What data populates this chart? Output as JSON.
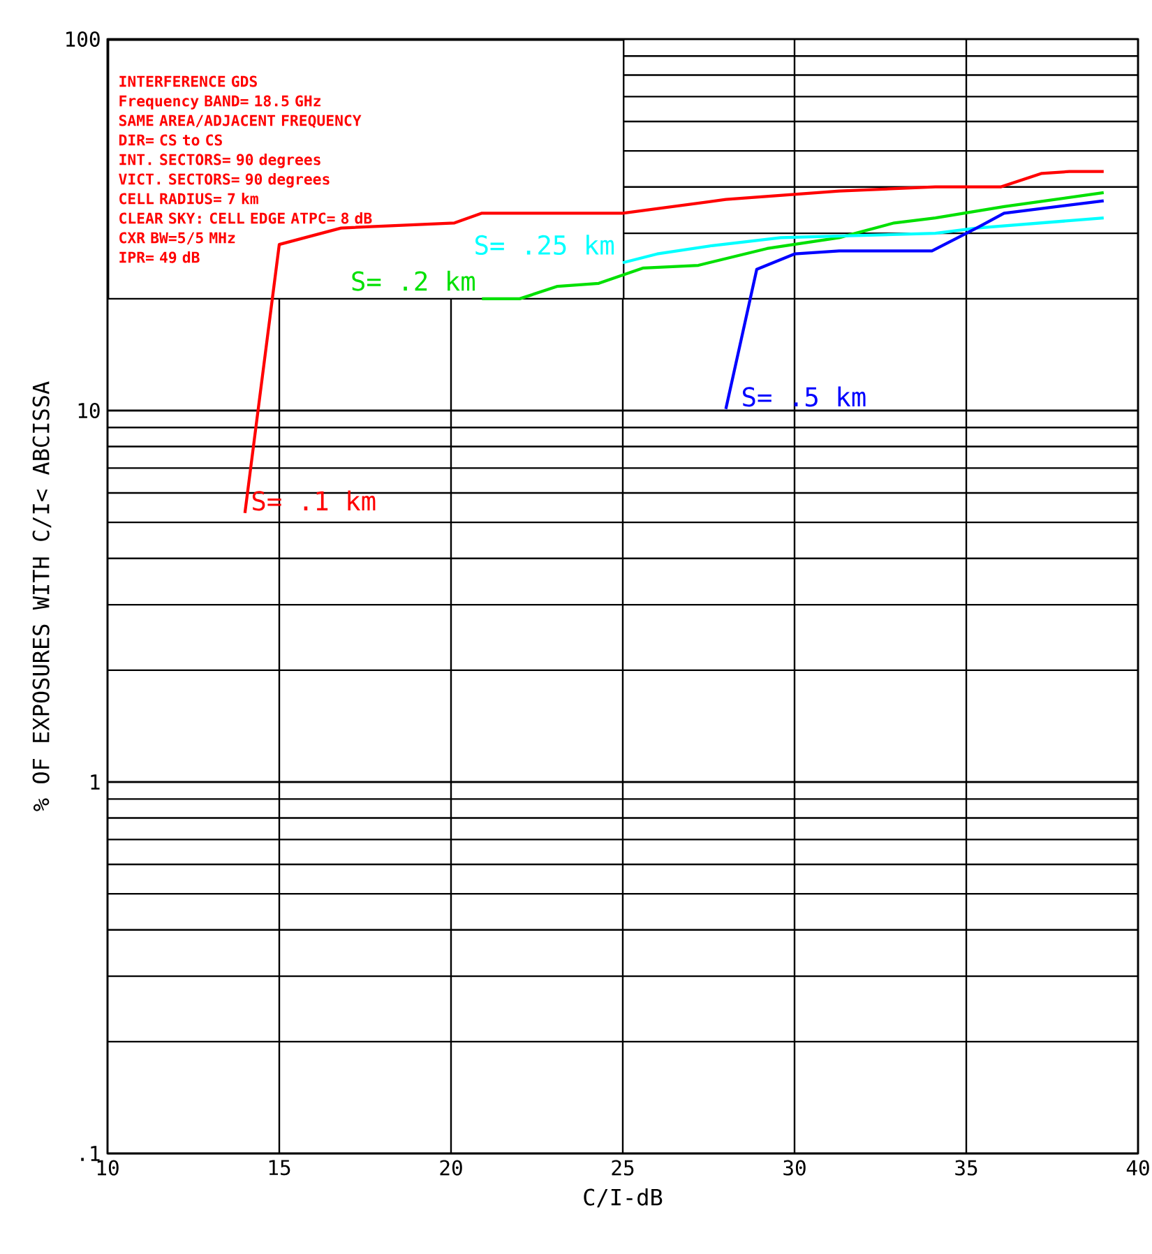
{
  "chart_data": {
    "type": "line",
    "xlabel": "C/I-dB",
    "ylabel": "% OF EXPOSURES WITH C/I< ABCISSA",
    "annotations": [
      "INTERFERENCE GDS",
      "Frequency BAND= 18.5 GHz",
      "SAME AREA/ADJACENT FREQUENCY",
      "DIR= CS to CS",
      "INT. SECTORS= 90 degrees",
      "VICT. SECTORS= 90 degrees",
      "CELL RADIUS= 7 km",
      "CLEAR SKY: CELL EDGE ATPC= 8 dB",
      "CXR BW=5/5 MHz",
      "IPR= 49 dB"
    ],
    "log": "y",
    "grid": true,
    "marker": "none",
    "line_style": "solid",
    "xlim": [
      10,
      40
    ],
    "ylim": [
      0.1,
      100
    ],
    "xticks": [
      10,
      15,
      20,
      25,
      30,
      35,
      40
    ],
    "yticks": [
      {
        "value": 0.1,
        "label": ".1"
      },
      1,
      10,
      100
    ],
    "series": [
      {
        "name": "S= .1 km",
        "color": "#ff0000",
        "x": [
          14.0,
          15.0,
          16.8,
          20.1,
          20.9,
          25.0,
          28.0,
          31.3,
          34.1,
          36.0,
          37.2,
          38.0,
          39.0
        ],
        "values": [
          5.3,
          28,
          31,
          32,
          34,
          34,
          37,
          39,
          40,
          40,
          43.5,
          44,
          44
        ]
      },
      {
        "name": "S= .2 km",
        "color": "#00e000",
        "x": [
          20.9,
          22.0,
          23.1,
          24.3,
          25.6,
          27.2,
          29.2,
          31.3,
          32.9,
          34.1,
          36.1,
          39.0
        ],
        "values": [
          20,
          20,
          21.6,
          22,
          24.2,
          24.6,
          27.3,
          29.2,
          32,
          33,
          35.4,
          38.6
        ]
      },
      {
        "name": "S= .25 km",
        "color": "#00ffff",
        "x": [
          25.0,
          26.0,
          27.6,
          29.6,
          34.1,
          35.3,
          39.0
        ],
        "values": [
          25,
          26.4,
          27.8,
          29.2,
          30,
          31,
          33
        ]
      },
      {
        "name": "S= .5 km",
        "color": "#0000ff",
        "x": [
          28.0,
          28.9,
          30.0,
          31.3,
          34.0,
          35.3,
          36.1,
          39.0
        ],
        "values": [
          10.1,
          24,
          26.4,
          26.9,
          26.9,
          31,
          34,
          36.7
        ]
      }
    ]
  }
}
